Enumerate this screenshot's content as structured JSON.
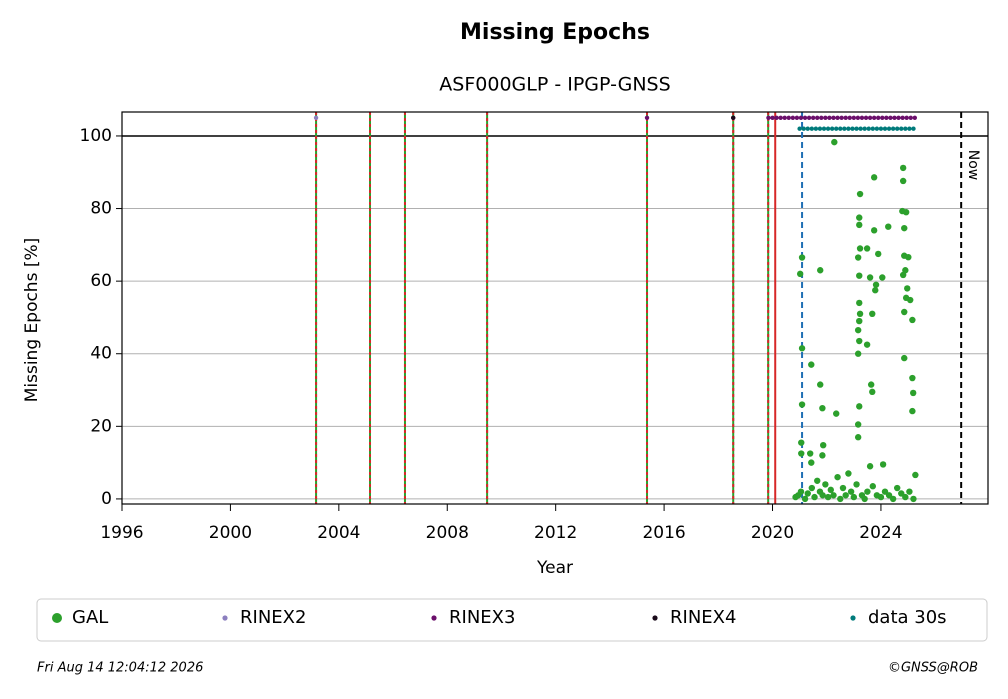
{
  "chart_data": {
    "type": "scatter",
    "title": "Missing Epochs",
    "subtitle": "ASF000GLP - IPGP-GNSS",
    "xlabel": "Year",
    "ylabel": "Missing Epochs [%]",
    "xlim": [
      1996,
      2027.95
    ],
    "ylim": [
      -1.4,
      106.6
    ],
    "xticks": [
      1996,
      2000,
      2004,
      2008,
      2012,
      2016,
      2020,
      2024
    ],
    "yticks": [
      0,
      20,
      40,
      60,
      80,
      100
    ],
    "grid": true,
    "hline": 100,
    "vlines": [
      {
        "x": 2003.16,
        "style": "green-red"
      },
      {
        "x": 2005.15,
        "style": "green-red"
      },
      {
        "x": 2006.44,
        "style": "green-red"
      },
      {
        "x": 2009.47,
        "style": "green-red"
      },
      {
        "x": 2015.37,
        "style": "green-red"
      },
      {
        "x": 2018.55,
        "style": "green-red"
      },
      {
        "x": 2019.84,
        "style": "green-red"
      },
      {
        "x": 2020.1,
        "style": "red"
      },
      {
        "x": 2021.09,
        "style": "blue-dashed"
      }
    ],
    "now": {
      "x": 2026.96,
      "label": "Now"
    },
    "series": [
      {
        "name": "GAL",
        "color": "#2ca02c",
        "x": [
          2021.02,
          2021.09,
          2021.09,
          2021.09,
          2021.06,
          2021.06,
          2021.39,
          2021.43,
          2021.43,
          2021.76,
          2021.76,
          2021.84,
          2021.87,
          2021.84,
          2022.28,
          2022.35,
          2022.8,
          2023.2,
          2023.23,
          2023.2,
          2023.23,
          2023.16,
          2023.2,
          2023.2,
          2023.23,
          2023.2,
          2023.16,
          2023.2,
          2023.16,
          2023.2,
          2023.16,
          2023.16,
          2023.49,
          2023.49,
          2023.6,
          2023.68,
          2023.75,
          2023.75,
          2023.79,
          2023.82,
          2023.9,
          2024.05,
          2023.64,
          2023.68,
          2023.6,
          2024.08,
          2024.27,
          2024.82,
          2024.82,
          2024.79,
          2024.93,
          2024.86,
          2024.86,
          2025.01,
          2024.9,
          2024.82,
          2024.97,
          2024.93,
          2025.08,
          2024.86,
          2025.16,
          2024.86,
          2025.16,
          2025.19,
          2025.16,
          2025.27,
          2020.85,
          2020.95,
          2021.05,
          2021.2,
          2021.3,
          2021.45,
          2021.55,
          2021.65,
          2021.75,
          2021.85,
          2021.95,
          2022.05,
          2022.15,
          2022.25,
          2022.4,
          2022.5,
          2022.6,
          2022.7,
          2022.9,
          2023.0,
          2023.1,
          2023.3,
          2023.4,
          2023.5,
          2023.7,
          2023.85,
          2024.0,
          2024.15,
          2024.3,
          2024.45,
          2024.6,
          2024.75,
          2024.9,
          2025.05,
          2025.2
        ],
        "values": [
          62,
          66.5,
          41.5,
          26,
          15.5,
          12.5,
          12.5,
          37,
          10,
          63,
          31.5,
          25,
          14.8,
          12,
          98.3,
          23.5,
          7,
          77.5,
          84,
          75.5,
          69,
          66.5,
          61.5,
          54,
          51,
          49,
          46.5,
          43.5,
          40,
          25.5,
          20.5,
          17,
          69,
          42.5,
          61,
          51,
          88.6,
          74,
          57.5,
          59,
          67.5,
          61,
          31.5,
          29.5,
          9,
          9.5,
          75,
          91.2,
          87.6,
          79.3,
          79,
          74.6,
          67,
          66.6,
          63,
          61.7,
          58,
          55.4,
          54.8,
          51.5,
          49.3,
          38.8,
          33.3,
          29.2,
          24.2,
          6.6,
          0.5,
          1,
          2,
          0,
          1.5,
          3,
          0.5,
          5,
          2,
          1,
          4,
          0.5,
          2.5,
          1,
          6,
          0,
          3,
          1,
          2,
          0.5,
          4,
          1,
          0,
          2,
          3.5,
          1,
          0.5,
          2,
          1,
          0,
          3,
          1.5,
          0.5,
          2,
          0
        ]
      },
      {
        "name": "RINEX2",
        "color": "#8c7fbf",
        "x": [
          2003.16
        ],
        "values": [
          105
        ]
      },
      {
        "name": "RINEX3",
        "color": "#6b0f6b",
        "x": [
          2015.37,
          2018.55,
          2019.85,
          2020.0,
          2020.15,
          2020.3,
          2020.45,
          2020.6,
          2020.75,
          2020.9,
          2021.05,
          2021.2,
          2021.35,
          2021.5,
          2021.65,
          2021.8,
          2021.95,
          2022.1,
          2022.25,
          2022.4,
          2022.55,
          2022.7,
          2022.85,
          2023.0,
          2023.15,
          2023.3,
          2023.45,
          2023.6,
          2023.75,
          2023.9,
          2024.05,
          2024.2,
          2024.35,
          2024.5,
          2024.65,
          2024.8,
          2024.95,
          2025.1,
          2025.25
        ],
        "values": [
          105,
          105,
          105,
          105,
          105,
          105,
          105,
          105,
          105,
          105,
          105,
          105,
          105,
          105,
          105,
          105,
          105,
          105,
          105,
          105,
          105,
          105,
          105,
          105,
          105,
          105,
          105,
          105,
          105,
          105,
          105,
          105,
          105,
          105,
          105,
          105,
          105,
          105,
          105
        ]
      },
      {
        "name": "RINEX4",
        "color": "#1a0a1a",
        "x": [
          2018.55
        ],
        "values": [
          105
        ]
      },
      {
        "name": "data 30s",
        "color": "#007b7b",
        "x": [
          2021.0,
          2021.15,
          2021.3,
          2021.45,
          2021.6,
          2021.75,
          2021.9,
          2022.05,
          2022.2,
          2022.35,
          2022.5,
          2022.65,
          2022.8,
          2022.95,
          2023.1,
          2023.25,
          2023.4,
          2023.55,
          2023.7,
          2023.85,
          2024.0,
          2024.15,
          2024.3,
          2024.45,
          2024.6,
          2024.75,
          2024.9,
          2025.05,
          2025.2
        ],
        "values": [
          102,
          102,
          102,
          102,
          102,
          102,
          102,
          102,
          102,
          102,
          102,
          102,
          102,
          102,
          102,
          102,
          102,
          102,
          102,
          102,
          102,
          102,
          102,
          102,
          102,
          102,
          102,
          102,
          102
        ]
      }
    ]
  },
  "footer": {
    "date": "Fri Aug 14 12:04:12 2026",
    "credit": "©GNSS@ROB"
  }
}
